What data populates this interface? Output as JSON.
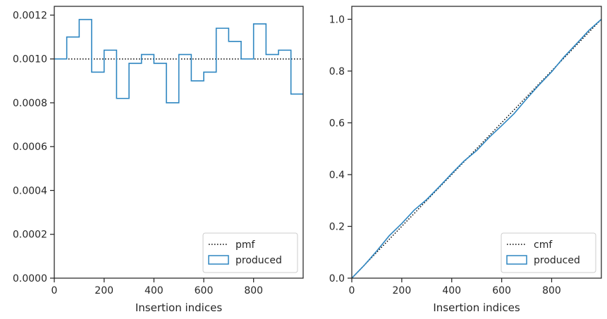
{
  "chart_data": [
    {
      "type": "line",
      "xlabel": "Insertion indices",
      "ylabel": "",
      "xlim": [
        0,
        999
      ],
      "ylim": [
        0,
        0.00124
      ],
      "xticks": [
        0,
        200,
        400,
        600,
        800
      ],
      "xtick_labels": [
        "0",
        "200",
        "400",
        "600",
        "800"
      ],
      "yticks": [
        0,
        0.0002,
        0.0004,
        0.0006,
        0.0008,
        0.001,
        0.0012
      ],
      "ytick_labels": [
        "0.0000",
        "0.0002",
        "0.0004",
        "0.0006",
        "0.0008",
        "0.0010",
        "0.0012"
      ],
      "grid": false,
      "legend_position": "lower-right",
      "series": [
        {
          "name": "pmf",
          "style": "dotted",
          "color": "#000000",
          "x": [
            0,
            999
          ],
          "y": [
            0.001,
            0.001
          ]
        },
        {
          "name": "produced",
          "style": "step-histogram",
          "color": "#2e86c1",
          "bin_edges": [
            0,
            50,
            100,
            150,
            200,
            250,
            300,
            350,
            400,
            450,
            500,
            550,
            600,
            650,
            700,
            750,
            800,
            850,
            900,
            950,
            1000
          ],
          "values": [
            0.001,
            0.0011,
            0.00118,
            0.00094,
            0.00104,
            0.00082,
            0.00098,
            0.00102,
            0.00098,
            0.0008,
            0.00102,
            0.0009,
            0.00094,
            0.00114,
            0.00108,
            0.001,
            0.00116,
            0.00102,
            0.00104,
            0.00084
          ]
        }
      ]
    },
    {
      "type": "line",
      "xlabel": "Insertion indices",
      "ylabel": "",
      "xlim": [
        0,
        999
      ],
      "ylim": [
        0,
        1.05
      ],
      "xticks": [
        0,
        200,
        400,
        600,
        800
      ],
      "xtick_labels": [
        "0",
        "200",
        "400",
        "600",
        "800"
      ],
      "yticks": [
        0,
        0.2,
        0.4,
        0.6,
        0.8,
        1.0
      ],
      "ytick_labels": [
        "0.0",
        "0.2",
        "0.4",
        "0.6",
        "0.8",
        "1.0"
      ],
      "grid": false,
      "legend_position": "lower-right",
      "series": [
        {
          "name": "cmf",
          "style": "dotted",
          "color": "#000000",
          "x": [
            0,
            999
          ],
          "y": [
            0,
            1.0
          ]
        },
        {
          "name": "produced",
          "style": "cumulative-step",
          "color": "#2e86c1",
          "x": [
            0,
            50,
            100,
            150,
            200,
            250,
            300,
            350,
            400,
            450,
            500,
            550,
            600,
            650,
            700,
            750,
            800,
            850,
            900,
            950,
            999
          ],
          "y": [
            0,
            0.05,
            0.105,
            0.164,
            0.211,
            0.263,
            0.304,
            0.353,
            0.404,
            0.453,
            0.493,
            0.544,
            0.589,
            0.636,
            0.693,
            0.747,
            0.797,
            0.855,
            0.906,
            0.958,
            1.0
          ]
        }
      ]
    }
  ]
}
